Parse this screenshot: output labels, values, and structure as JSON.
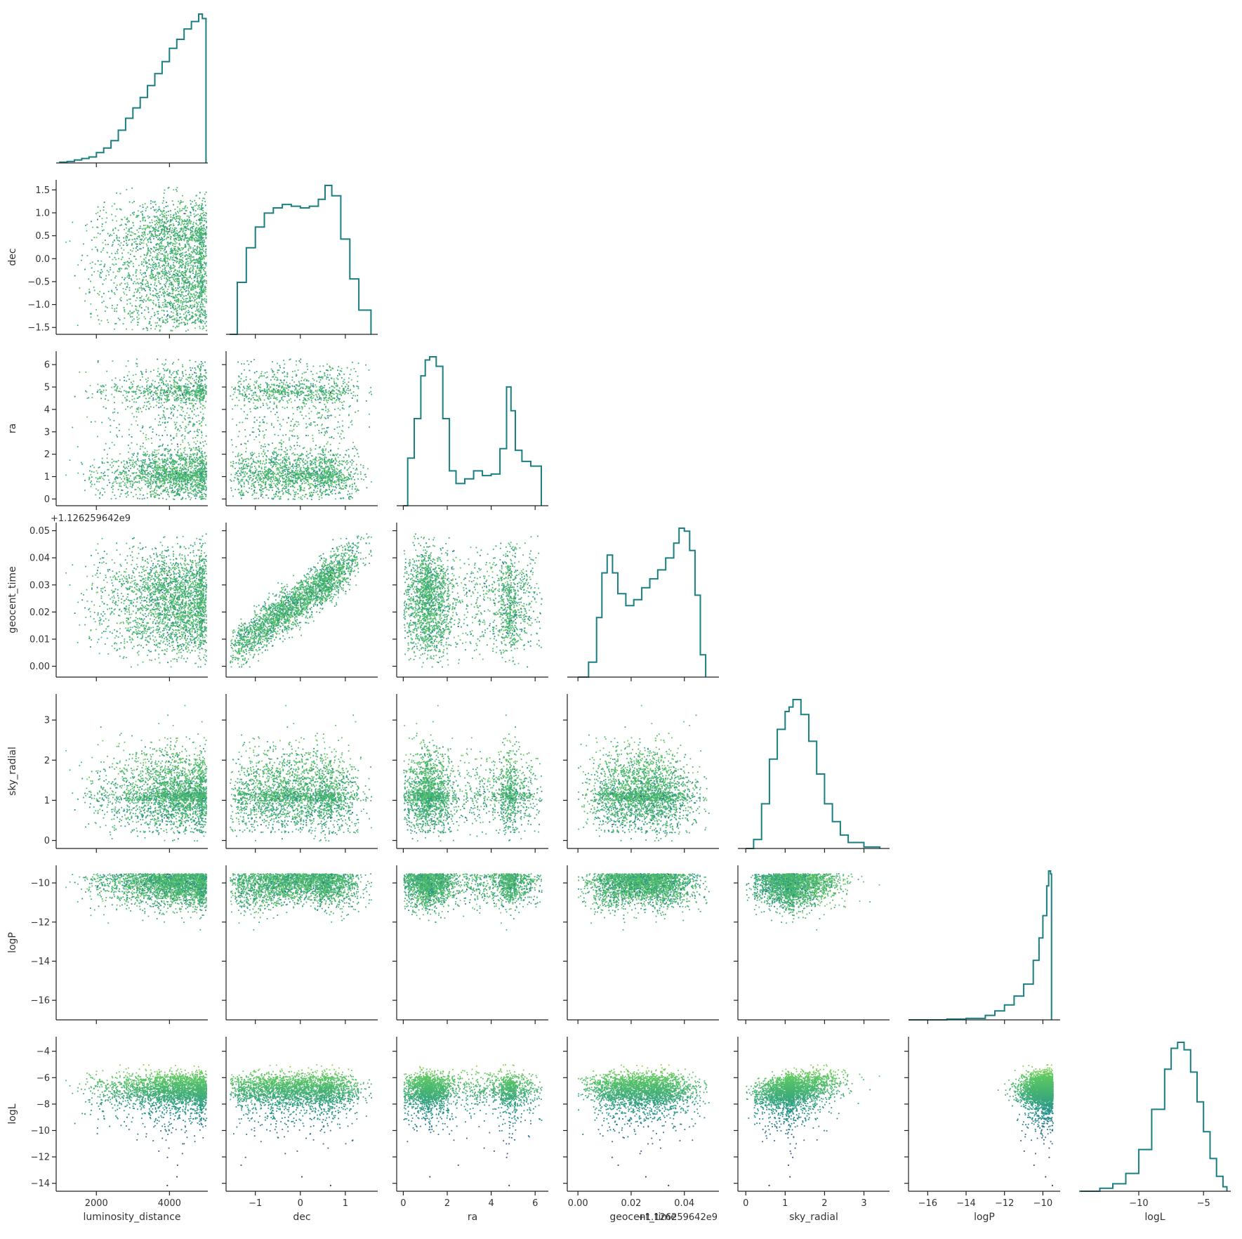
{
  "chart_data": {
    "type": "corner",
    "colors": {
      "histogram": "#1a7f80",
      "axis": "#222222",
      "colormap": [
        "#440154",
        "#3b528b",
        "#21918c",
        "#5ec962",
        "#fde725"
      ],
      "color_by": "logL"
    },
    "variables": [
      {
        "name": "luminosity_distance",
        "label": "luminosity_distance",
        "range": [
          900,
          5050
        ],
        "ticks": [
          2000,
          4000
        ],
        "tick_labels": [
          "2000",
          "4000"
        ]
      },
      {
        "name": "dec",
        "label": "dec",
        "range": [
          -1.65,
          1.72
        ],
        "ticks": [
          -1.5,
          -1.0,
          -0.5,
          0.0,
          0.5,
          1.0,
          1.5
        ],
        "tick_labels": [
          "−1.5",
          "−1.0",
          "−0.5",
          "0.0",
          "0.5",
          "1.0",
          "1.5"
        ],
        "x_ticks": [
          -1,
          0,
          1
        ],
        "x_tick_labels": [
          "−1",
          "0",
          "1"
        ]
      },
      {
        "name": "ra",
        "label": "ra",
        "range": [
          -0.3,
          6.6
        ],
        "ticks": [
          0,
          1,
          2,
          3,
          4,
          5,
          6
        ],
        "tick_labels": [
          "0",
          "1",
          "2",
          "3",
          "4",
          "5",
          "6"
        ],
        "x_ticks": [
          0,
          2,
          4,
          6
        ],
        "x_tick_labels": [
          "0",
          "2",
          "4",
          "6"
        ]
      },
      {
        "name": "geocent_time",
        "label": "geocent_time",
        "offset": "+1.126259642e9",
        "offset_x": "+1.126259642e9",
        "range": [
          -0.004,
          0.053
        ],
        "ticks": [
          0.0,
          0.01,
          0.02,
          0.03,
          0.04,
          0.05
        ],
        "tick_labels": [
          "0.00",
          "0.01",
          "0.02",
          "0.03",
          "0.04",
          "0.05"
        ],
        "x_ticks": [
          0.0,
          0.02,
          0.04
        ],
        "x_tick_labels": [
          "0.00",
          "0.02",
          "0.04"
        ]
      },
      {
        "name": "sky_radial",
        "label": "sky_radial",
        "range": [
          -0.2,
          3.65
        ],
        "ticks": [
          0,
          1,
          2,
          3
        ],
        "tick_labels": [
          "0",
          "1",
          "2",
          "3"
        ]
      },
      {
        "name": "logP",
        "label": "logP",
        "range": [
          -17.0,
          -9.1
        ],
        "ticks": [
          -16,
          -14,
          -12,
          -10
        ],
        "tick_labels": [
          "−16",
          "−14",
          "−12",
          "−10"
        ]
      },
      {
        "name": "logL",
        "label": "logL",
        "range": [
          -14.6,
          -2.9
        ],
        "ticks": [
          -14,
          -12,
          -10,
          -8,
          -6,
          -4
        ],
        "tick_labels": [
          "−14",
          "−12",
          "−10",
          "−8",
          "−6",
          "−4"
        ],
        "x_ticks": [
          -10,
          -5
        ],
        "x_tick_labels": [
          "−10",
          "−5"
        ]
      }
    ],
    "histograms": [
      {
        "variable": "luminosity_distance",
        "x": [
          1000,
          1200,
          1400,
          1600,
          1800,
          2000,
          2200,
          2400,
          2600,
          2800,
          3000,
          3200,
          3400,
          3600,
          3800,
          4000,
          4200,
          4400,
          4600,
          4800,
          4900,
          5000
        ],
        "counts": [
          0.5,
          1,
          2,
          3,
          4,
          7,
          10,
          15,
          22,
          30,
          37,
          44,
          52,
          60,
          68,
          77,
          83,
          90,
          95,
          100,
          97,
          0
        ]
      },
      {
        "variable": "dec",
        "x": [
          -1.57,
          -1.4,
          -1.2,
          -1.0,
          -0.8,
          -0.6,
          -0.4,
          -0.2,
          0.0,
          0.2,
          0.4,
          0.55,
          0.7,
          0.9,
          1.1,
          1.3,
          1.57
        ],
        "counts": [
          0,
          30,
          50,
          62,
          70,
          73,
          75,
          74,
          73,
          74,
          78,
          86,
          80,
          55,
          32,
          14,
          0
        ]
      },
      {
        "variable": "ra",
        "x": [
          0.0,
          0.2,
          0.5,
          0.8,
          1.0,
          1.2,
          1.5,
          1.8,
          2.1,
          2.4,
          2.8,
          3.2,
          3.6,
          4.0,
          4.4,
          4.7,
          4.9,
          5.1,
          5.4,
          5.8,
          6.28
        ],
        "counts": [
          0,
          30,
          55,
          82,
          92,
          94,
          88,
          55,
          22,
          14,
          17,
          22,
          19,
          20,
          36,
          75,
          60,
          35,
          28,
          25,
          0
        ]
      },
      {
        "variable": "geocent_time",
        "x": [
          0.0,
          0.004,
          0.007,
          0.009,
          0.011,
          0.013,
          0.015,
          0.018,
          0.021,
          0.024,
          0.027,
          0.03,
          0.033,
          0.036,
          0.038,
          0.04,
          0.042,
          0.044,
          0.046,
          0.048
        ],
        "counts": [
          0,
          10,
          40,
          70,
          82,
          70,
          56,
          48,
          52,
          60,
          66,
          72,
          80,
          90,
          100,
          98,
          85,
          55,
          15,
          0
        ]
      },
      {
        "variable": "sky_radial",
        "x": [
          0.0,
          0.2,
          0.4,
          0.6,
          0.8,
          1.0,
          1.1,
          1.2,
          1.4,
          1.6,
          1.8,
          2.0,
          2.2,
          2.4,
          2.6,
          3.0,
          3.4
        ],
        "counts": [
          0,
          6,
          30,
          60,
          80,
          92,
          95,
          100,
          90,
          72,
          50,
          30,
          18,
          9,
          4,
          1,
          0
        ]
      },
      {
        "variable": "logP",
        "x": [
          -17.0,
          -15.0,
          -14.0,
          -13.0,
          -12.5,
          -12.0,
          -11.5,
          -11.0,
          -10.5,
          -10.2,
          -10.0,
          -9.8,
          -9.7,
          -9.6,
          -9.55
        ],
        "counts": [
          0,
          0.5,
          1,
          3,
          6,
          10,
          16,
          24,
          40,
          55,
          70,
          90,
          100,
          98,
          0
        ]
      },
      {
        "variable": "logL",
        "x": [
          -14.5,
          -13.0,
          -12.0,
          -11.0,
          -10.0,
          -9.0,
          -8.0,
          -7.5,
          -7.0,
          -6.5,
          -6.0,
          -5.5,
          -5.0,
          -4.5,
          -4.0,
          -3.5,
          -3.2
        ],
        "counts": [
          0,
          2,
          5,
          12,
          28,
          55,
          82,
          96,
          100,
          95,
          80,
          60,
          40,
          22,
          10,
          3,
          0
        ]
      }
    ]
  }
}
